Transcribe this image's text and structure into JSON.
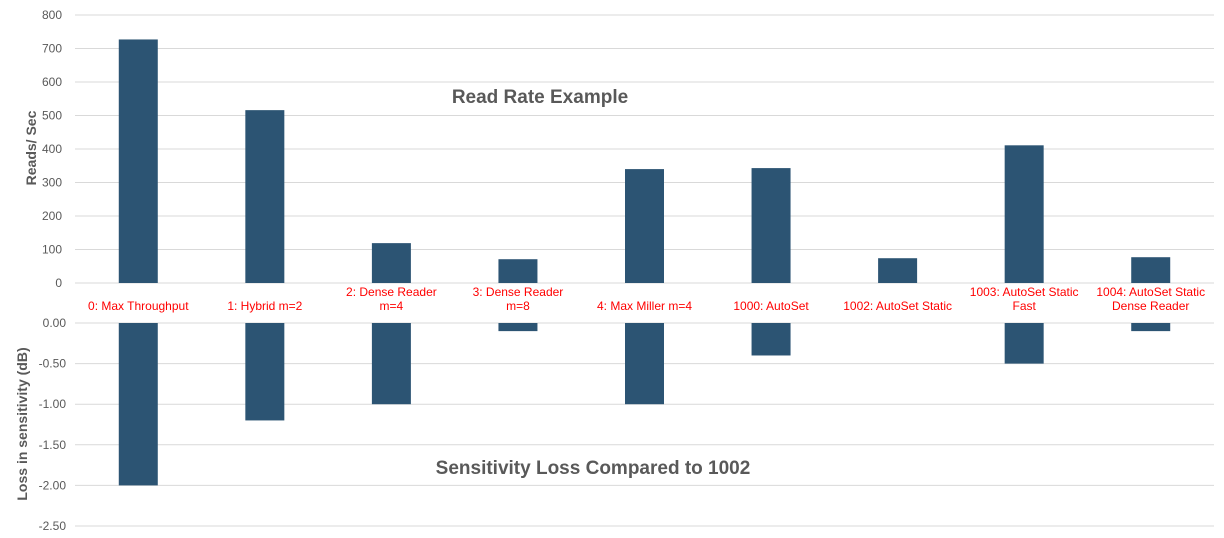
{
  "colors": {
    "bar": "#2c5473",
    "category_label": "#ff0000",
    "grid": "#d9d9d9",
    "text": "#595959"
  },
  "chart_data": [
    {
      "type": "bar",
      "title": "Read Rate Example",
      "xlabel": "",
      "ylabel": "Reads/ Sec",
      "ylim": [
        0,
        800
      ],
      "yticks": [
        "0",
        "100",
        "200",
        "300",
        "400",
        "500",
        "600",
        "700",
        "800"
      ],
      "grid": true,
      "categories": [
        [
          "0: Max Throughput"
        ],
        [
          "1: Hybrid m=2"
        ],
        [
          "2: Dense Reader",
          "m=4"
        ],
        [
          "3: Dense Reader",
          "m=8"
        ],
        [
          "4: Max Miller m=4"
        ],
        [
          "1000: AutoSet"
        ],
        [
          "1002: AutoSet Static"
        ],
        [
          "1003: AutoSet Static",
          "Fast"
        ],
        [
          "1004: AutoSet Static",
          "Dense Reader"
        ]
      ],
      "values": [
        727,
        516,
        119,
        71,
        340,
        343,
        74,
        411,
        77
      ]
    },
    {
      "type": "bar",
      "title": "Sensitivity Loss Compared to 1002",
      "xlabel": "",
      "ylabel": "Loss in sensitivity  (dB)",
      "ylim": [
        -2.5,
        0
      ],
      "yticks": [
        "0.00",
        "-0.50",
        "-1.00",
        "-1.50",
        "-2.00",
        "-2.50"
      ],
      "grid": true,
      "categories": [
        "0: Max Throughput",
        "1: Hybrid m=2",
        "2: Dense Reader m=4",
        "3: Dense Reader m=8",
        "4: Max Miller m=4",
        "1000: AutoSet",
        "1002: AutoSet Static",
        "1003: AutoSet Static Fast",
        "1004: AutoSet Static Dense Reader"
      ],
      "values": [
        -2.0,
        -1.2,
        -1.0,
        -0.1,
        -1.0,
        -0.4,
        0.0,
        -0.5,
        -0.1
      ]
    }
  ]
}
